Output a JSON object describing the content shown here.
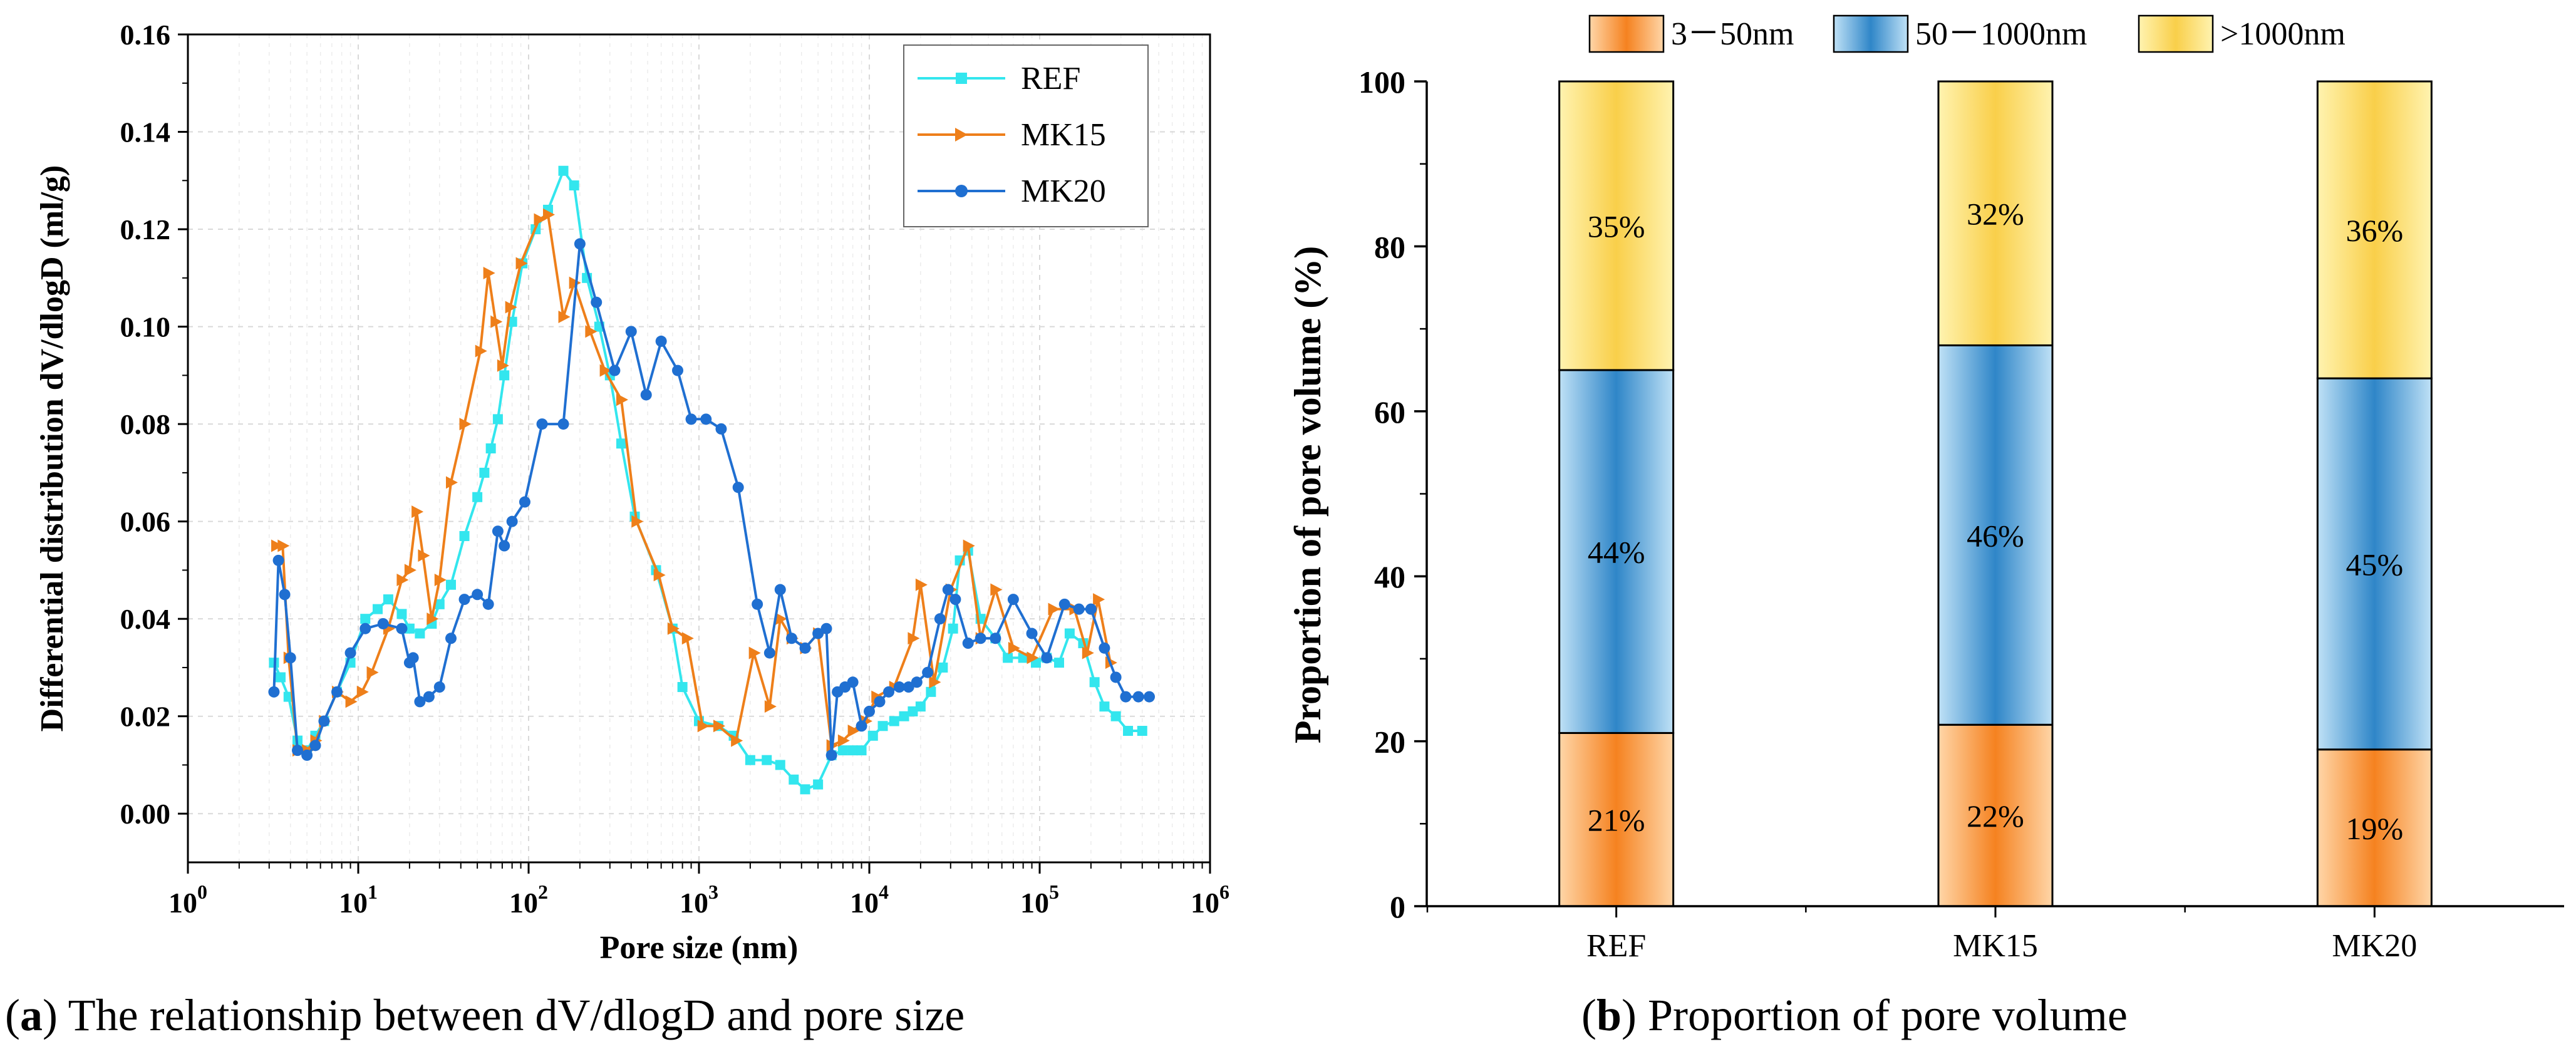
{
  "colors": {
    "ref": "#33e6ee",
    "mk15": "#ee7f1a",
    "mk20": "#1f6fd1",
    "seg_small_light": "#ffd6a8",
    "seg_small_dark": "#f58220",
    "seg_mid_light": "#bfe1f6",
    "seg_mid_dark": "#2f86c8",
    "seg_large_light": "#fff3b0",
    "seg_large_dark": "#f9cf4a"
  },
  "captions": {
    "a_letter": "a",
    "a_text": " The relationship between dV/dlogD and pore size",
    "b_letter": "b",
    "b_text": " Proportion of pore volume"
  },
  "chart_data": [
    {
      "id": "a",
      "type": "line",
      "xscale": "log",
      "xlabel": "Pore size (nm)",
      "ylabel": "Differential distribution dV/dlogD (ml/g)",
      "xlim": [
        1,
        1000000
      ],
      "ylim": [
        -0.01,
        0.16
      ],
      "grid": true,
      "legend": "top-right",
      "yticks": [
        "0.00",
        "0.02",
        "0.04",
        "0.06",
        "0.08",
        "0.10",
        "0.12",
        "0.14",
        "0.16"
      ],
      "xticks": [
        {
          "base": "10",
          "exp": "0"
        },
        {
          "base": "10",
          "exp": "1"
        },
        {
          "base": "10",
          "exp": "2"
        },
        {
          "base": "10",
          "exp": "3"
        },
        {
          "base": "10",
          "exp": "4"
        },
        {
          "base": "10",
          "exp": "5"
        },
        {
          "base": "10",
          "exp": "6"
        }
      ],
      "series": [
        {
          "name": "REF",
          "marker": "square",
          "points": [
            [
              3.2,
              0.031
            ],
            [
              3.5,
              0.028
            ],
            [
              3.9,
              0.024
            ],
            [
              4.4,
              0.015
            ],
            [
              5.0,
              0.013
            ],
            [
              5.6,
              0.016
            ],
            [
              6.3,
              0.019
            ],
            [
              7.5,
              0.025
            ],
            [
              9.0,
              0.031
            ],
            [
              11,
              0.04
            ],
            [
              13,
              0.042
            ],
            [
              15,
              0.044
            ],
            [
              18,
              0.041
            ],
            [
              20,
              0.038
            ],
            [
              23,
              0.037
            ],
            [
              27,
              0.039
            ],
            [
              30,
              0.043
            ],
            [
              35,
              0.047
            ],
            [
              42,
              0.057
            ],
            [
              50,
              0.065
            ],
            [
              55,
              0.07
            ],
            [
              60,
              0.075
            ],
            [
              66,
              0.081
            ],
            [
              72,
              0.09
            ],
            [
              80,
              0.101
            ],
            [
              92,
              0.113
            ],
            [
              110,
              0.12
            ],
            [
              130,
              0.124
            ],
            [
              160,
              0.132
            ],
            [
              185,
              0.129
            ],
            [
              220,
              0.11
            ],
            [
              260,
              0.1
            ],
            [
              300,
              0.09
            ],
            [
              350,
              0.076
            ],
            [
              420,
              0.061
            ],
            [
              560,
              0.05
            ],
            [
              700,
              0.038
            ],
            [
              800,
              0.026
            ],
            [
              1000,
              0.019
            ],
            [
              1300,
              0.018
            ],
            [
              1600,
              0.016
            ],
            [
              2000,
              0.011
            ],
            [
              2500,
              0.011
            ],
            [
              3000,
              0.01
            ],
            [
              3600,
              0.007
            ],
            [
              4200,
              0.005
            ],
            [
              5000,
              0.006
            ],
            [
              6000,
              0.012
            ],
            [
              7000,
              0.013
            ],
            [
              8000,
              0.013
            ],
            [
              9000,
              0.013
            ],
            [
              10500,
              0.016
            ],
            [
              12000,
              0.018
            ],
            [
              14000,
              0.019
            ],
            [
              16000,
              0.02
            ],
            [
              18000,
              0.021
            ],
            [
              20000,
              0.022
            ],
            [
              23000,
              0.025
            ],
            [
              27000,
              0.03
            ],
            [
              31000,
              0.038
            ],
            [
              34000,
              0.052
            ],
            [
              38000,
              0.054
            ],
            [
              45000,
              0.04
            ],
            [
              55000,
              0.036
            ],
            [
              65000,
              0.032
            ],
            [
              80000,
              0.032
            ],
            [
              95000,
              0.031
            ],
            [
              110000,
              0.032
            ],
            [
              130000,
              0.031
            ],
            [
              150000,
              0.037
            ],
            [
              180000,
              0.035
            ],
            [
              210000,
              0.027
            ],
            [
              240000,
              0.022
            ],
            [
              280000,
              0.02
            ],
            [
              330000,
              0.017
            ],
            [
              400000,
              0.017
            ]
          ]
        },
        {
          "name": "MK15",
          "marker": "triangle",
          "points": [
            [
              3.3,
              0.055
            ],
            [
              3.6,
              0.055
            ],
            [
              3.9,
              0.032
            ],
            [
              4.4,
              0.013
            ],
            [
              5.0,
              0.013
            ],
            [
              5.6,
              0.015
            ],
            [
              6.3,
              0.019
            ],
            [
              7.5,
              0.025
            ],
            [
              9.0,
              0.023
            ],
            [
              10.5,
              0.025
            ],
            [
              12,
              0.029
            ],
            [
              15,
              0.038
            ],
            [
              18,
              0.048
            ],
            [
              20,
              0.05
            ],
            [
              22,
              0.062
            ],
            [
              24,
              0.053
            ],
            [
              27,
              0.04
            ],
            [
              30,
              0.048
            ],
            [
              35,
              0.068
            ],
            [
              42,
              0.08
            ],
            [
              52,
              0.095
            ],
            [
              58,
              0.111
            ],
            [
              64,
              0.101
            ],
            [
              70,
              0.092
            ],
            [
              78,
              0.104
            ],
            [
              90,
              0.113
            ],
            [
              115,
              0.122
            ],
            [
              130,
              0.123
            ],
            [
              160,
              0.102
            ],
            [
              185,
              0.109
            ],
            [
              230,
              0.099
            ],
            [
              280,
              0.091
            ],
            [
              350,
              0.085
            ],
            [
              430,
              0.06
            ],
            [
              580,
              0.049
            ],
            [
              700,
              0.038
            ],
            [
              850,
              0.036
            ],
            [
              1050,
              0.018
            ],
            [
              1300,
              0.018
            ],
            [
              1650,
              0.015
            ],
            [
              2100,
              0.033
            ],
            [
              2600,
              0.022
            ],
            [
              3000,
              0.04
            ],
            [
              3500,
              0.036
            ],
            [
              4200,
              0.034
            ],
            [
              5000,
              0.037
            ],
            [
              6000,
              0.014
            ],
            [
              7000,
              0.015
            ],
            [
              8000,
              0.017
            ],
            [
              9500,
              0.019
            ],
            [
              11000,
              0.024
            ],
            [
              14000,
              0.026
            ],
            [
              18000,
              0.036
            ],
            [
              20000,
              0.047
            ],
            [
              24000,
              0.027
            ],
            [
              30000,
              0.046
            ],
            [
              38000,
              0.055
            ],
            [
              45000,
              0.036
            ],
            [
              55000,
              0.046
            ],
            [
              70000,
              0.034
            ],
            [
              90000,
              0.032
            ],
            [
              120000,
              0.042
            ],
            [
              160000,
              0.042
            ],
            [
              190000,
              0.033
            ],
            [
              220000,
              0.044
            ],
            [
              260000,
              0.031
            ]
          ]
        },
        {
          "name": "MK20",
          "marker": "circle",
          "points": [
            [
              3.2,
              0.025
            ],
            [
              3.4,
              0.052
            ],
            [
              3.7,
              0.045
            ],
            [
              4.0,
              0.032
            ],
            [
              4.4,
              0.013
            ],
            [
              5.0,
              0.012
            ],
            [
              5.6,
              0.014
            ],
            [
              6.3,
              0.019
            ],
            [
              7.5,
              0.025
            ],
            [
              9.0,
              0.033
            ],
            [
              11,
              0.038
            ],
            [
              14,
              0.039
            ],
            [
              18,
              0.038
            ],
            [
              20,
              0.031
            ],
            [
              21,
              0.032
            ],
            [
              23,
              0.023
            ],
            [
              26,
              0.024
            ],
            [
              30,
              0.026
            ],
            [
              35,
              0.036
            ],
            [
              42,
              0.044
            ],
            [
              50,
              0.045
            ],
            [
              58,
              0.043
            ],
            [
              66,
              0.058
            ],
            [
              72,
              0.055
            ],
            [
              80,
              0.06
            ],
            [
              95,
              0.064
            ],
            [
              120,
              0.08
            ],
            [
              160,
              0.08
            ],
            [
              200,
              0.117
            ],
            [
              250,
              0.105
            ],
            [
              320,
              0.091
            ],
            [
              400,
              0.099
            ],
            [
              490,
              0.086
            ],
            [
              600,
              0.097
            ],
            [
              750,
              0.091
            ],
            [
              900,
              0.081
            ],
            [
              1100,
              0.081
            ],
            [
              1350,
              0.079
            ],
            [
              1700,
              0.067
            ],
            [
              2200,
              0.043
            ],
            [
              2600,
              0.033
            ],
            [
              3000,
              0.046
            ],
            [
              3500,
              0.036
            ],
            [
              4200,
              0.034
            ],
            [
              5000,
              0.037
            ],
            [
              5600,
              0.038
            ],
            [
              6000,
              0.012
            ],
            [
              6500,
              0.025
            ],
            [
              7200,
              0.026
            ],
            [
              8000,
              0.027
            ],
            [
              9000,
              0.018
            ],
            [
              10000,
              0.021
            ],
            [
              11500,
              0.023
            ],
            [
              13000,
              0.025
            ],
            [
              15000,
              0.026
            ],
            [
              17000,
              0.026
            ],
            [
              19000,
              0.027
            ],
            [
              22000,
              0.029
            ],
            [
              26000,
              0.04
            ],
            [
              29000,
              0.046
            ],
            [
              32000,
              0.044
            ],
            [
              38000,
              0.035
            ],
            [
              45000,
              0.036
            ],
            [
              55000,
              0.036
            ],
            [
              70000,
              0.044
            ],
            [
              90000,
              0.037
            ],
            [
              110000,
              0.032
            ],
            [
              140000,
              0.043
            ],
            [
              170000,
              0.042
            ],
            [
              200000,
              0.042
            ],
            [
              240000,
              0.034
            ],
            [
              280000,
              0.028
            ],
            [
              320000,
              0.024
            ],
            [
              380000,
              0.024
            ],
            [
              440000,
              0.024
            ]
          ]
        }
      ]
    },
    {
      "id": "b",
      "type": "bar",
      "stacked": true,
      "ylabel": "Proportion of pore volume (%)",
      "ylim": [
        0,
        100
      ],
      "yticks": [
        "0",
        "20",
        "40",
        "60",
        "80",
        "100"
      ],
      "legend": "top",
      "categories": [
        "REF",
        "MK15",
        "MK20"
      ],
      "series": [
        {
          "name": "3－50nm",
          "values": [
            21,
            22,
            19
          ],
          "labels": [
            "21%",
            "22%",
            "19%"
          ]
        },
        {
          "name": "50－1000nm",
          "values": [
            44,
            46,
            45
          ],
          "labels": [
            "44%",
            "46%",
            "45%"
          ]
        },
        {
          "name": ">1000nm",
          "values": [
            35,
            32,
            36
          ],
          "labels": [
            "35%",
            "32%",
            "36%"
          ]
        }
      ]
    }
  ]
}
